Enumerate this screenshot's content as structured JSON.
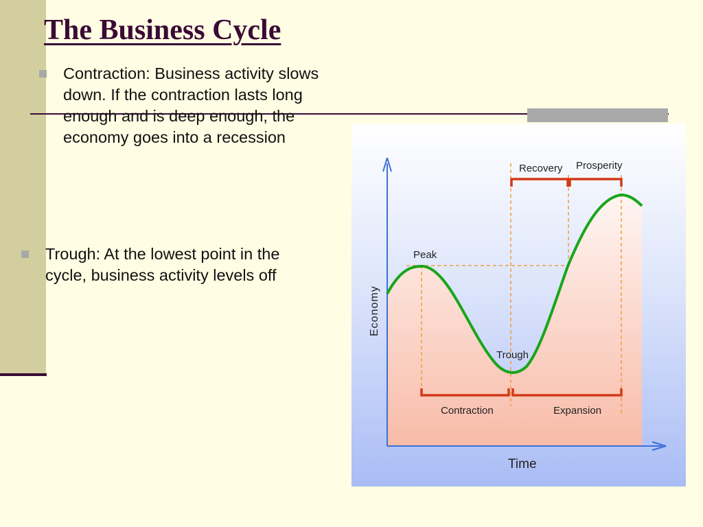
{
  "slide": {
    "title": "The Business Cycle",
    "bullets": [
      "Contraction: Business activity slows down.  If the contraction lasts long enough and is deep enough, the economy goes into a recession",
      "Trough: At the lowest point in the cycle, business activity levels off"
    ]
  },
  "diagram": {
    "x_axis_label": "Time",
    "y_axis_label": "Economy",
    "points": {
      "peak": "Peak",
      "trough": "Trough"
    },
    "phases_top": [
      "Recovery",
      "Prosperity"
    ],
    "phases_bottom": [
      "Contraction",
      "Expansion"
    ]
  },
  "colors": {
    "title": "#3a0a35",
    "curve": "#1aa51a",
    "phase_bar": "#d23a18",
    "guide_line": "#f29a3c",
    "axis": "#3d6fd6"
  }
}
